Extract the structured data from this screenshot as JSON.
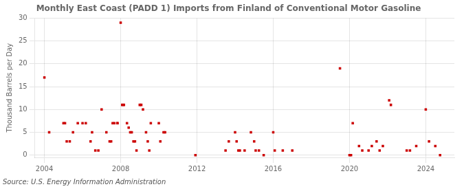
{
  "chart_data": {
    "type": "scatter",
    "title": "Monthly East Coast (PADD 1) Imports from Finland of Conventional Motor Gasoline",
    "y_label": "Thousand Barrels per Day",
    "source": "Source: U.S. Energy Information Administration",
    "color": "#cc0000",
    "marker": "square",
    "grid": true,
    "xlim": [
      2003.5,
      2025.5
    ],
    "ylim": [
      -0.5,
      30
    ],
    "xticks": [
      2004,
      2008,
      2012,
      2016,
      2020,
      2024
    ],
    "yticks": [
      0,
      5,
      10,
      15,
      20,
      25,
      30
    ],
    "x": [
      2004.0,
      2004.25,
      2005.0,
      2005.08,
      2005.17,
      2005.33,
      2005.5,
      2005.75,
      2006.0,
      2006.17,
      2006.42,
      2006.5,
      2006.67,
      2006.83,
      2007.0,
      2007.25,
      2007.42,
      2007.5,
      2007.58,
      2007.67,
      2007.83,
      2007.83,
      2008.0,
      2008.08,
      2008.17,
      2008.33,
      2008.42,
      2008.5,
      2008.58,
      2008.67,
      2008.75,
      2008.83,
      2009.0,
      2009.08,
      2009.17,
      2009.33,
      2009.42,
      2009.5,
      2009.58,
      2010.0,
      2010.08,
      2010.25,
      2010.33,
      2011.92,
      2013.5,
      2013.67,
      2014.0,
      2014.08,
      2014.17,
      2014.25,
      2014.5,
      2014.83,
      2015.0,
      2015.08,
      2015.25,
      2015.5,
      2016.0,
      2016.08,
      2016.5,
      2017.0,
      2019.5,
      2020.0,
      2020.08,
      2020.17,
      2020.5,
      2020.67,
      2021.0,
      2021.17,
      2021.42,
      2021.58,
      2021.75,
      2022.08,
      2022.17,
      2023.0,
      2023.17,
      2023.5,
      2024.0,
      2024.17,
      2024.5,
      2024.75
    ],
    "values": [
      17,
      5,
      7,
      7,
      3,
      3,
      5,
      7,
      7,
      7,
      3,
      5,
      1,
      1,
      10,
      5,
      3,
      3,
      7,
      7,
      7,
      7,
      29,
      11,
      11,
      7,
      6,
      5,
      5,
      3,
      3,
      1,
      11,
      11,
      10,
      5,
      3,
      1,
      7,
      7,
      3,
      5,
      5,
      0,
      1,
      3,
      5,
      3,
      1,
      1,
      1,
      5,
      3,
      1,
      1,
      0,
      5,
      1,
      1,
      1,
      19,
      0,
      0,
      7,
      2,
      1,
      1,
      2,
      3,
      1,
      2,
      12,
      11,
      1,
      1,
      2,
      10,
      3,
      2,
      0
    ]
  }
}
